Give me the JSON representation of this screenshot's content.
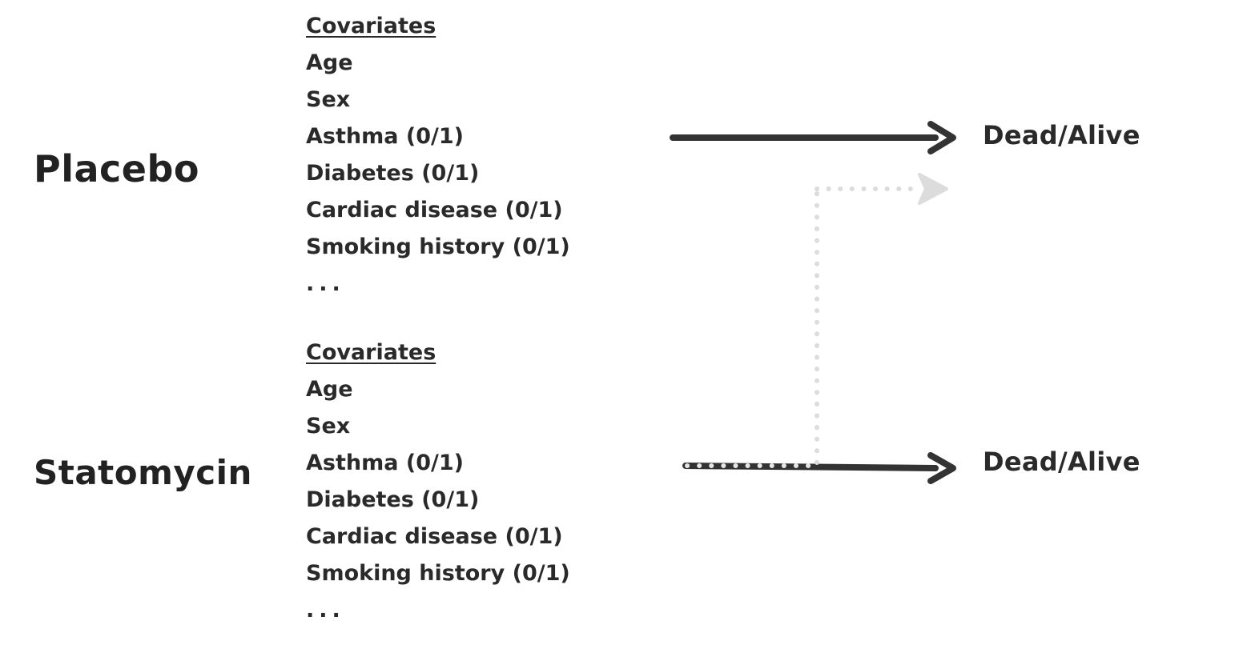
{
  "groups": {
    "placebo": "Placebo",
    "statomycin": "Statomycin"
  },
  "covariates_top": {
    "heading": "Covariates",
    "items": [
      "Age",
      "Sex",
      "Asthma (0/1)",
      "Diabetes (0/1)",
      "Cardiac disease (0/1)",
      "Smoking history (0/1)"
    ],
    "ellipsis": "..."
  },
  "covariates_bottom": {
    "heading": "Covariates",
    "items": [
      "Age",
      "Sex",
      "Asthma (0/1)",
      "Diabetes (0/1)",
      "Cardiac disease (0/1)",
      "Smoking history (0/1)"
    ],
    "ellipsis": "..."
  },
  "outcomes": {
    "top": "Dead/Alive",
    "bottom": "Dead/Alive"
  },
  "colors": {
    "text": "#2a2a2a",
    "arrow_solid": "#333333",
    "arrow_dotted": "#dcdcdc",
    "dotted_on_solid": "#e6e6e6"
  }
}
